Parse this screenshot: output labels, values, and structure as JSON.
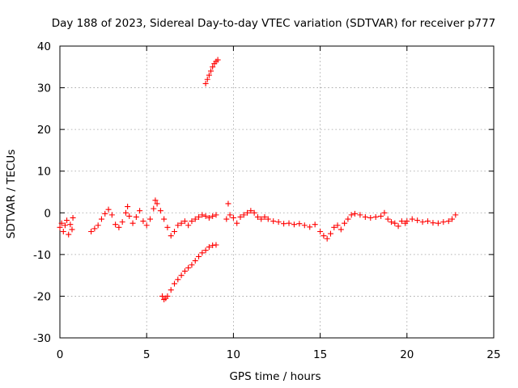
{
  "chart_data": {
    "type": "scatter",
    "title": "Day 188 of 2023, Sidereal Day-to-day VTEC variation (SDTVAR) for receiver p777",
    "xlabel": "GPS time / hours",
    "ylabel": "SDTVAR / TECUs",
    "xlim": [
      0,
      25
    ],
    "ylim": [
      -30,
      40
    ],
    "xticks": [
      "0",
      "5",
      "10",
      "15",
      "20",
      "25"
    ],
    "yticks": [
      "40",
      "30",
      "20",
      "10",
      "0",
      "-10",
      "-20",
      "-30"
    ],
    "grid": true,
    "marker": "+",
    "color": "#ff0000",
    "series": [
      {
        "name": "main-band",
        "points": [
          [
            0.0,
            -3.5
          ],
          [
            0.1,
            -2.5
          ],
          [
            0.2,
            -4.5
          ],
          [
            0.3,
            -3.0
          ],
          [
            0.4,
            -1.8
          ],
          [
            0.5,
            -5.2
          ],
          [
            0.6,
            -2.8
          ],
          [
            0.7,
            -4.0
          ],
          [
            0.75,
            -1.2
          ],
          [
            1.8,
            -4.5
          ],
          [
            2.0,
            -3.8
          ],
          [
            2.2,
            -3.0
          ],
          [
            2.4,
            -1.5
          ],
          [
            2.6,
            -0.2
          ],
          [
            2.8,
            0.8
          ],
          [
            3.0,
            -0.5
          ],
          [
            3.2,
            -2.8
          ],
          [
            3.4,
            -3.5
          ],
          [
            3.6,
            -2.2
          ],
          [
            3.8,
            0.0
          ],
          [
            3.9,
            1.5
          ],
          [
            4.0,
            -0.8
          ],
          [
            4.2,
            -2.5
          ],
          [
            4.4,
            -1.0
          ],
          [
            4.6,
            0.5
          ],
          [
            4.8,
            -2.0
          ],
          [
            5.0,
            -3.0
          ],
          [
            5.2,
            -1.5
          ],
          [
            5.4,
            1.0
          ],
          [
            5.5,
            3.0
          ],
          [
            5.6,
            2.2
          ],
          [
            5.8,
            0.5
          ],
          [
            6.0,
            -1.5
          ],
          [
            6.2,
            -3.5
          ],
          [
            6.4,
            -5.5
          ],
          [
            6.6,
            -4.5
          ],
          [
            6.8,
            -3.0
          ],
          [
            7.0,
            -2.5
          ],
          [
            7.2,
            -2.0
          ],
          [
            7.4,
            -3.0
          ],
          [
            7.6,
            -2.0
          ],
          [
            7.8,
            -1.5
          ],
          [
            8.0,
            -1.0
          ],
          [
            8.2,
            -0.5
          ],
          [
            8.4,
            -0.8
          ],
          [
            8.6,
            -1.2
          ],
          [
            8.8,
            -0.8
          ],
          [
            9.0,
            -0.5
          ],
          [
            9.6,
            -1.5
          ],
          [
            9.8,
            -0.5
          ],
          [
            10.0,
            -1.2
          ],
          [
            10.2,
            -2.5
          ],
          [
            10.4,
            -1.0
          ],
          [
            10.6,
            -0.5
          ],
          [
            10.8,
            0.0
          ],
          [
            11.0,
            0.5
          ],
          [
            11.2,
            0.0
          ],
          [
            11.4,
            -1.0
          ],
          [
            11.6,
            -1.5
          ],
          [
            11.8,
            -1.0
          ],
          [
            12.0,
            -1.5
          ],
          [
            12.3,
            -2.0
          ],
          [
            12.6,
            -2.2
          ],
          [
            12.9,
            -2.6
          ],
          [
            13.2,
            -2.5
          ],
          [
            13.5,
            -2.8
          ],
          [
            13.8,
            -2.6
          ],
          [
            14.1,
            -3.0
          ],
          [
            14.4,
            -3.4
          ],
          [
            14.7,
            -2.8
          ],
          [
            15.0,
            -4.5
          ],
          [
            15.2,
            -5.5
          ],
          [
            15.4,
            -6.2
          ],
          [
            15.6,
            -5.0
          ],
          [
            15.8,
            -3.5
          ],
          [
            16.0,
            -3.0
          ],
          [
            16.2,
            -4.0
          ],
          [
            16.4,
            -2.5
          ],
          [
            16.6,
            -1.5
          ],
          [
            16.8,
            -0.5
          ],
          [
            17.0,
            -0.2
          ],
          [
            17.3,
            -0.5
          ],
          [
            17.6,
            -1.0
          ],
          [
            17.9,
            -1.2
          ],
          [
            18.2,
            -1.0
          ],
          [
            18.5,
            -0.8
          ],
          [
            18.7,
            0.0
          ],
          [
            18.9,
            -1.5
          ],
          [
            19.1,
            -2.2
          ],
          [
            19.3,
            -2.5
          ],
          [
            19.5,
            -3.2
          ],
          [
            19.7,
            -2.0
          ],
          [
            19.9,
            -2.5
          ],
          [
            20.0,
            -2.0
          ],
          [
            20.3,
            -1.5
          ],
          [
            20.6,
            -1.8
          ],
          [
            20.9,
            -2.2
          ],
          [
            21.2,
            -2.0
          ],
          [
            21.5,
            -2.4
          ],
          [
            21.8,
            -2.5
          ],
          [
            22.1,
            -2.2
          ],
          [
            22.4,
            -2.0
          ],
          [
            22.6,
            -1.5
          ],
          [
            22.8,
            -0.5
          ]
        ]
      },
      {
        "name": "rising-branch",
        "points": [
          [
            5.9,
            -20.0
          ],
          [
            6.0,
            -20.8
          ],
          [
            6.1,
            -20.5
          ],
          [
            6.2,
            -20.0
          ],
          [
            6.4,
            -18.5
          ],
          [
            6.6,
            -17.0
          ],
          [
            6.8,
            -16.0
          ],
          [
            7.0,
            -15.0
          ],
          [
            7.2,
            -14.0
          ],
          [
            7.4,
            -13.2
          ],
          [
            7.6,
            -12.5
          ],
          [
            7.8,
            -11.5
          ],
          [
            8.0,
            -10.5
          ],
          [
            8.2,
            -9.6
          ],
          [
            8.4,
            -9.0
          ],
          [
            8.6,
            -8.2
          ],
          [
            8.8,
            -7.8
          ],
          [
            9.0,
            -7.7
          ]
        ]
      },
      {
        "name": "high-branch",
        "points": [
          [
            8.4,
            31.0
          ],
          [
            8.5,
            32.0
          ],
          [
            8.6,
            33.0
          ],
          [
            8.7,
            34.0
          ],
          [
            8.8,
            35.0
          ],
          [
            8.9,
            35.8
          ],
          [
            9.0,
            36.3
          ],
          [
            9.1,
            36.7
          ]
        ]
      },
      {
        "name": "isolated",
        "points": [
          [
            9.7,
            2.2
          ]
        ]
      }
    ]
  }
}
